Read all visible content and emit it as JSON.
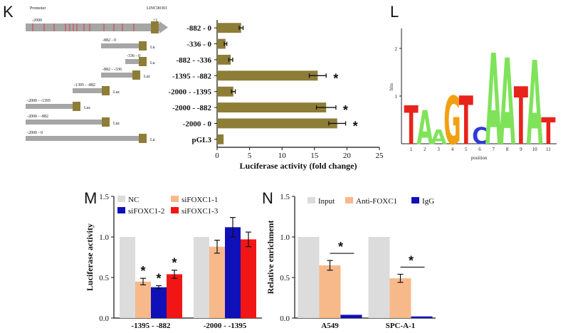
{
  "panels": {
    "K": "K",
    "L": "L",
    "M": "M",
    "N": "N"
  },
  "diagram_K": {
    "promoter_label": "Promoter",
    "gene_label": "LINC00301",
    "start_label": "-2000",
    "tss_label": "+1",
    "constructs": [
      {
        "range": "-882 - 0",
        "luc": "Lu"
      },
      {
        "range": "-336 - 0",
        "luc": "Lu"
      },
      {
        "range": "-882 - -336",
        "luc": "Luc"
      },
      {
        "range": "-1395 - -882",
        "luc": "Luc"
      },
      {
        "range": "-2000 - -1395",
        "luc": "Luc"
      },
      {
        "range": "-2000 - -882",
        "luc": "Luc"
      },
      {
        "range": "-2000 - 0",
        "luc": "Lu"
      }
    ]
  },
  "chart_data": [
    {
      "panel": "K",
      "type": "bar",
      "orientation": "horizontal",
      "categories": [
        "-882 - 0",
        "-336 - 0",
        "-882 - -336",
        "-1395 - -882",
        "-2000 - -1395",
        "-2000 - -882",
        "-2000 - 0",
        "pGL3"
      ],
      "values": [
        3.7,
        1.3,
        2.1,
        15.5,
        2.5,
        16.8,
        18.5,
        1.0
      ],
      "errors": [
        0.3,
        0.2,
        0.3,
        1.3,
        0.3,
        1.5,
        1.3,
        0.0
      ],
      "significant": [
        false,
        false,
        false,
        true,
        false,
        true,
        true,
        false
      ],
      "star": "*",
      "xlabel": "Luciferase activity (fold change)",
      "xlim": [
        0,
        25
      ],
      "xticks": [
        "0",
        "5",
        "10",
        "15",
        "20",
        "25"
      ],
      "color": "#8e7d37"
    },
    {
      "panel": "L",
      "type": "sequence-logo",
      "ylabel": "bits",
      "xlabel": "position",
      "yticks": [
        "1",
        "2"
      ],
      "positions": [
        "1",
        "2",
        "3",
        "4",
        "5",
        "6",
        "7",
        "8",
        "9",
        "10",
        "11"
      ],
      "columns": [
        {
          "top": "T",
          "height": 0.8
        },
        {
          "top": "A",
          "height": 0.7
        },
        {
          "top": "A",
          "height": 0.3
        },
        {
          "top": "G",
          "height": 1.0
        },
        {
          "top": "T",
          "height": 1.0
        },
        {
          "top": "C",
          "height": 0.35
        },
        {
          "top": "A",
          "height": 1.9
        },
        {
          "top": "A",
          "height": 1.8
        },
        {
          "top": "T",
          "height": 1.2
        },
        {
          "top": "A",
          "height": 1.75
        },
        {
          "top": "T",
          "height": 0.55
        }
      ]
    },
    {
      "panel": "M",
      "type": "bar",
      "categories": [
        "-1395 - -882",
        "-2000 - -1395"
      ],
      "series": [
        {
          "name": "NC",
          "color": "#dcdcdc",
          "values": [
            1.0,
            1.0
          ],
          "errors": [
            0,
            0
          ]
        },
        {
          "name": "siFOXC1-1",
          "color": "#f8b98a",
          "values": [
            0.45,
            0.88
          ],
          "errors": [
            0.04,
            0.08
          ]
        },
        {
          "name": "siFOXC1-2",
          "color": "#1010b8",
          "values": [
            0.38,
            1.12
          ],
          "errors": [
            0.02,
            0.12
          ]
        },
        {
          "name": "siFOXC1-3",
          "color": "#f21515",
          "values": [
            0.54,
            0.97
          ],
          "errors": [
            0.05,
            0.09
          ]
        }
      ],
      "significant": [
        [
          false,
          true,
          true,
          true
        ],
        [
          false,
          false,
          false,
          false
        ]
      ],
      "star": "*",
      "ylabel": "Luciferase activity",
      "ylim": [
        0,
        1.5
      ],
      "yticks": [
        "0.0",
        "0.5",
        "1.0",
        "1.5"
      ]
    },
    {
      "panel": "N",
      "type": "bar",
      "categories": [
        "A549",
        "SPC-A-1"
      ],
      "series": [
        {
          "name": "Input",
          "color": "#dcdcdc",
          "values": [
            1.0,
            1.0
          ],
          "errors": [
            0,
            0
          ]
        },
        {
          "name": "Anti-FOXC1",
          "color": "#f8b98a",
          "values": [
            0.65,
            0.49
          ],
          "errors": [
            0.06,
            0.05
          ]
        },
        {
          "name": "IgG",
          "color": "#1010b8",
          "values": [
            0.04,
            0.02
          ],
          "errors": [
            0,
            0
          ]
        }
      ],
      "star": "*",
      "ylabel": "Relative enrichment",
      "ylim": [
        0,
        1.5
      ],
      "yticks": [
        "0.0",
        "0.5",
        "1.0",
        "1.5"
      ]
    }
  ]
}
